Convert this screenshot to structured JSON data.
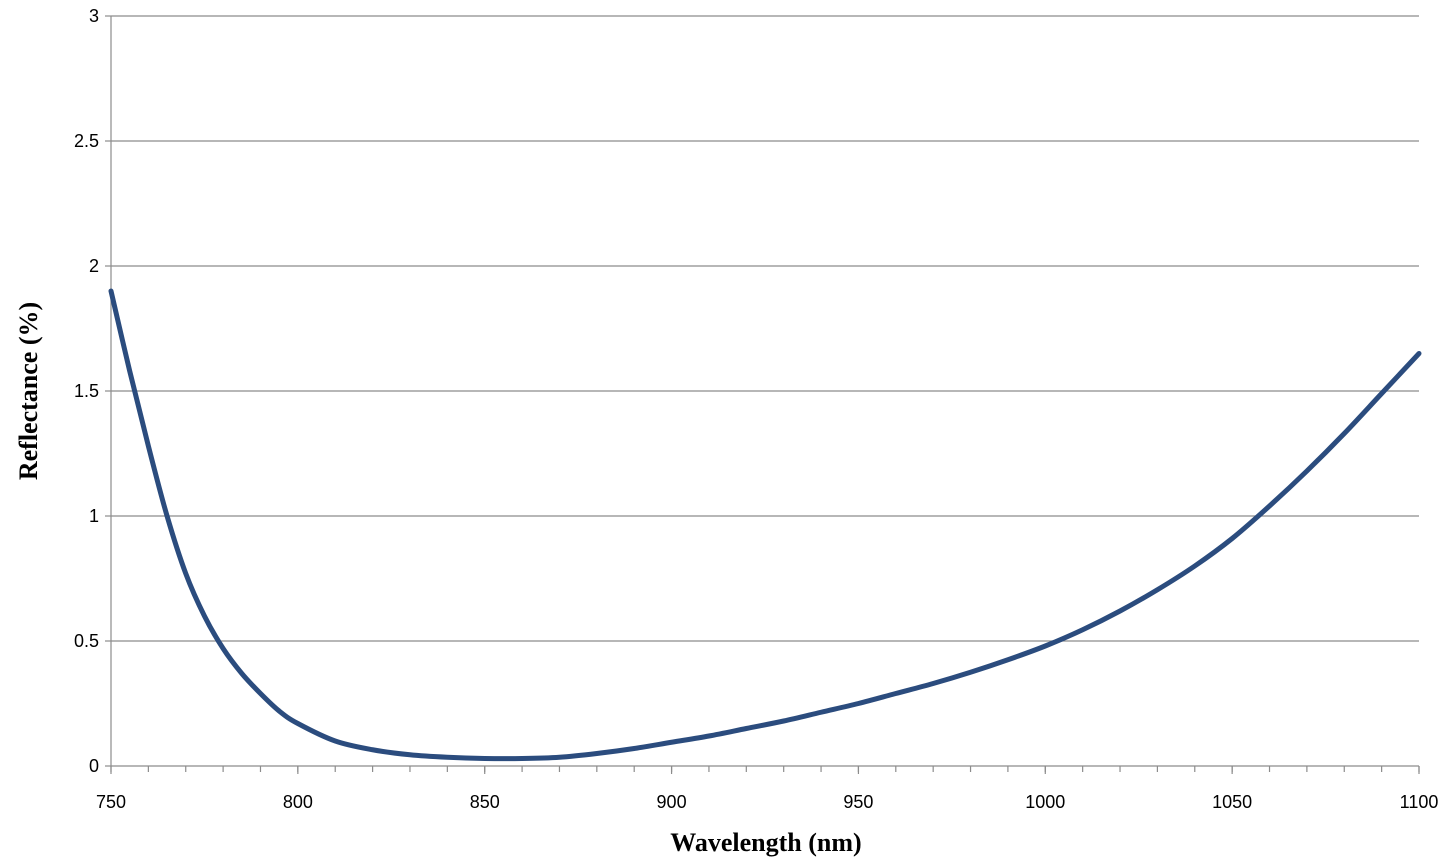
{
  "chart_data": {
    "type": "line",
    "xlabel": "Wavelength (nm)",
    "ylabel": "Reflectance (%)",
    "xlim": [
      750,
      1100
    ],
    "ylim": [
      0,
      3
    ],
    "x_ticks": [
      750,
      800,
      850,
      900,
      950,
      1000,
      1050,
      1100
    ],
    "x_tick_labels": [
      "750",
      "800",
      "850",
      "900",
      "950",
      "1000",
      "1050",
      "1100"
    ],
    "y_ticks": [
      0,
      0.5,
      1,
      1.5,
      2,
      2.5,
      3
    ],
    "y_tick_labels": [
      "0",
      "0.5",
      "1",
      "1.5",
      "2",
      "2.5",
      "3"
    ],
    "grid": "horizontal",
    "line_color": "#2b4c7e",
    "series": [
      {
        "x": [
          750,
          755,
          760,
          765,
          770,
          775,
          780,
          785,
          790,
          795,
          800,
          810,
          820,
          830,
          840,
          850,
          860,
          870,
          880,
          890,
          900,
          910,
          920,
          930,
          940,
          950,
          960,
          970,
          980,
          990,
          1000,
          1010,
          1020,
          1030,
          1040,
          1050,
          1060,
          1070,
          1080,
          1090,
          1100
        ],
        "y": [
          1.9,
          1.58,
          1.28,
          1.0,
          0.77,
          0.6,
          0.47,
          0.37,
          0.29,
          0.22,
          0.17,
          0.1,
          0.065,
          0.045,
          0.035,
          0.03,
          0.03,
          0.035,
          0.05,
          0.07,
          0.095,
          0.12,
          0.15,
          0.18,
          0.215,
          0.25,
          0.29,
          0.33,
          0.375,
          0.425,
          0.48,
          0.545,
          0.62,
          0.705,
          0.8,
          0.91,
          1.04,
          1.18,
          1.33,
          1.49,
          1.65
        ]
      }
    ]
  }
}
